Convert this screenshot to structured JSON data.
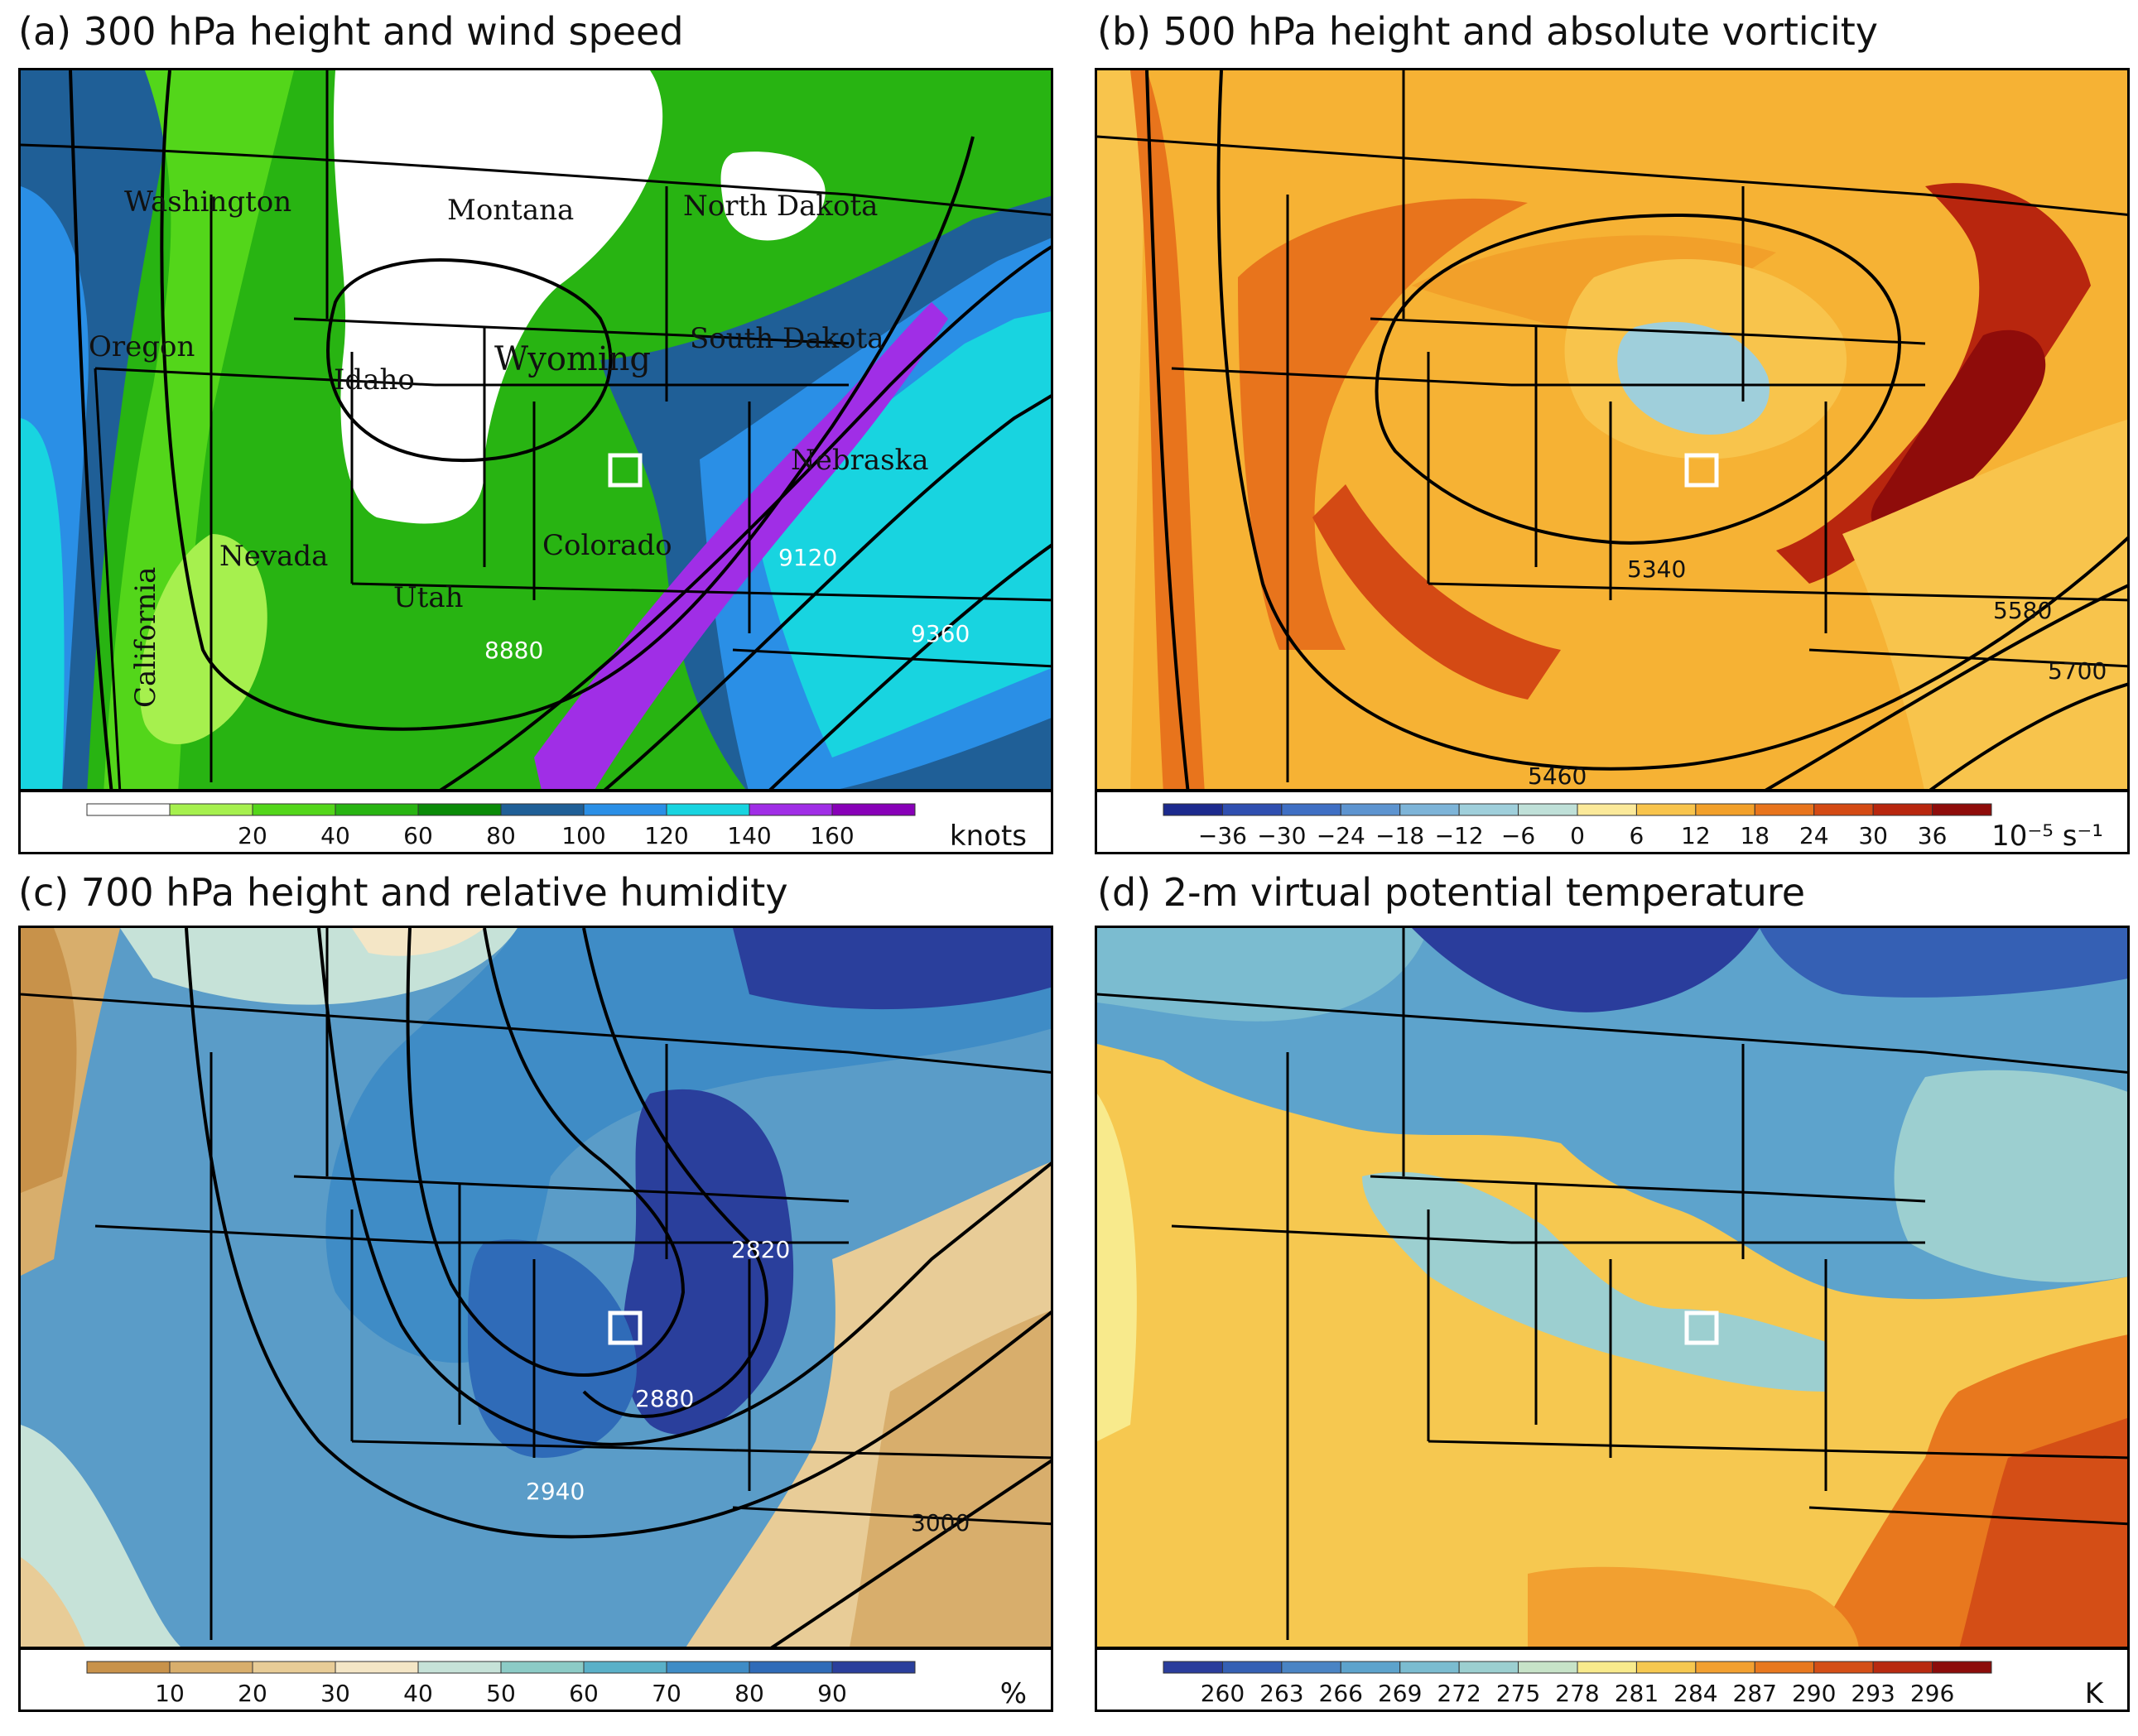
{
  "panels": [
    {
      "id": "a",
      "title": "(a) 300 hPa height and wind speed",
      "state_labels": [
        "Washington",
        "Montana",
        "North Dakota",
        "Oregon",
        "Idaho",
        "Wyoming",
        "South Dakota",
        "Nebraska",
        "Nevada",
        "Colorado",
        "Utah",
        "California"
      ],
      "contour_labels": [
        "8880",
        "9120",
        "9360"
      ],
      "colorbar": {
        "ticks": [
          "20",
          "40",
          "60",
          "80",
          "100",
          "120",
          "140",
          "160"
        ],
        "unit": "knots",
        "colors": [
          "#ffffff",
          "#a6f04e",
          "#53d61a",
          "#28b412",
          "#0a8b08",
          "#1f5f97",
          "#2a8fe6",
          "#18d4e0",
          "#a02ee6",
          "#8800b8"
        ]
      },
      "field_colors": {
        "low": "#ffffff",
        "mid": "#3ebc13",
        "high": "#a02ee6",
        "edge": "#1f5f97"
      }
    },
    {
      "id": "b",
      "title": "(b) 500 hPa height and absolute vorticity",
      "contour_labels": [
        "5340",
        "5580",
        "5700",
        "5460"
      ],
      "colorbar": {
        "ticks": [
          "−36",
          "−30",
          "−24",
          "−18",
          "−12",
          "−6",
          "0",
          "6",
          "12",
          "18",
          "24",
          "30",
          "36"
        ],
        "unit": "10⁻⁵ s⁻¹",
        "colors": [
          "#1c2a8e",
          "#2f4fb0",
          "#3f6fc4",
          "#5d94d0",
          "#7db4d8",
          "#9fcfdb",
          "#bfe0d8",
          "#fbe99a",
          "#f8c44c",
          "#f2a02a",
          "#e8741c",
          "#d44a14",
          "#b8260e",
          "#8f0c0a"
        ]
      }
    },
    {
      "id": "c",
      "title": "(c) 700 hPa height and relative humidity",
      "contour_labels": [
        "2820",
        "2880",
        "2940",
        "3000"
      ],
      "colorbar": {
        "ticks": [
          "10",
          "20",
          "30",
          "40",
          "50",
          "60",
          "70",
          "80",
          "90"
        ],
        "unit": "%",
        "colors": [
          "#c8924a",
          "#d8ae6c",
          "#e8cc97",
          "#f4e6c6",
          "#c6e2d8",
          "#8ccbc6",
          "#5ab0c8",
          "#3f8cc6",
          "#2f6bb8",
          "#2a3f9c"
        ]
      }
    },
    {
      "id": "d",
      "title": "(d) 2-m virtual potential temperature",
      "colorbar": {
        "ticks": [
          "260",
          "263",
          "266",
          "269",
          "272",
          "275",
          "278",
          "281",
          "284",
          "287",
          "290",
          "293",
          "296"
        ],
        "unit": "K",
        "colors": [
          "#2a3d9c",
          "#3560b4",
          "#4a84c4",
          "#5da3cc",
          "#7bbcd0",
          "#9ccfd0",
          "#c7e3c8",
          "#f8ea8c",
          "#f6c850",
          "#f2a030",
          "#e8781e",
          "#d44e16",
          "#b82a10",
          "#8c0c0a"
        ]
      }
    }
  ]
}
